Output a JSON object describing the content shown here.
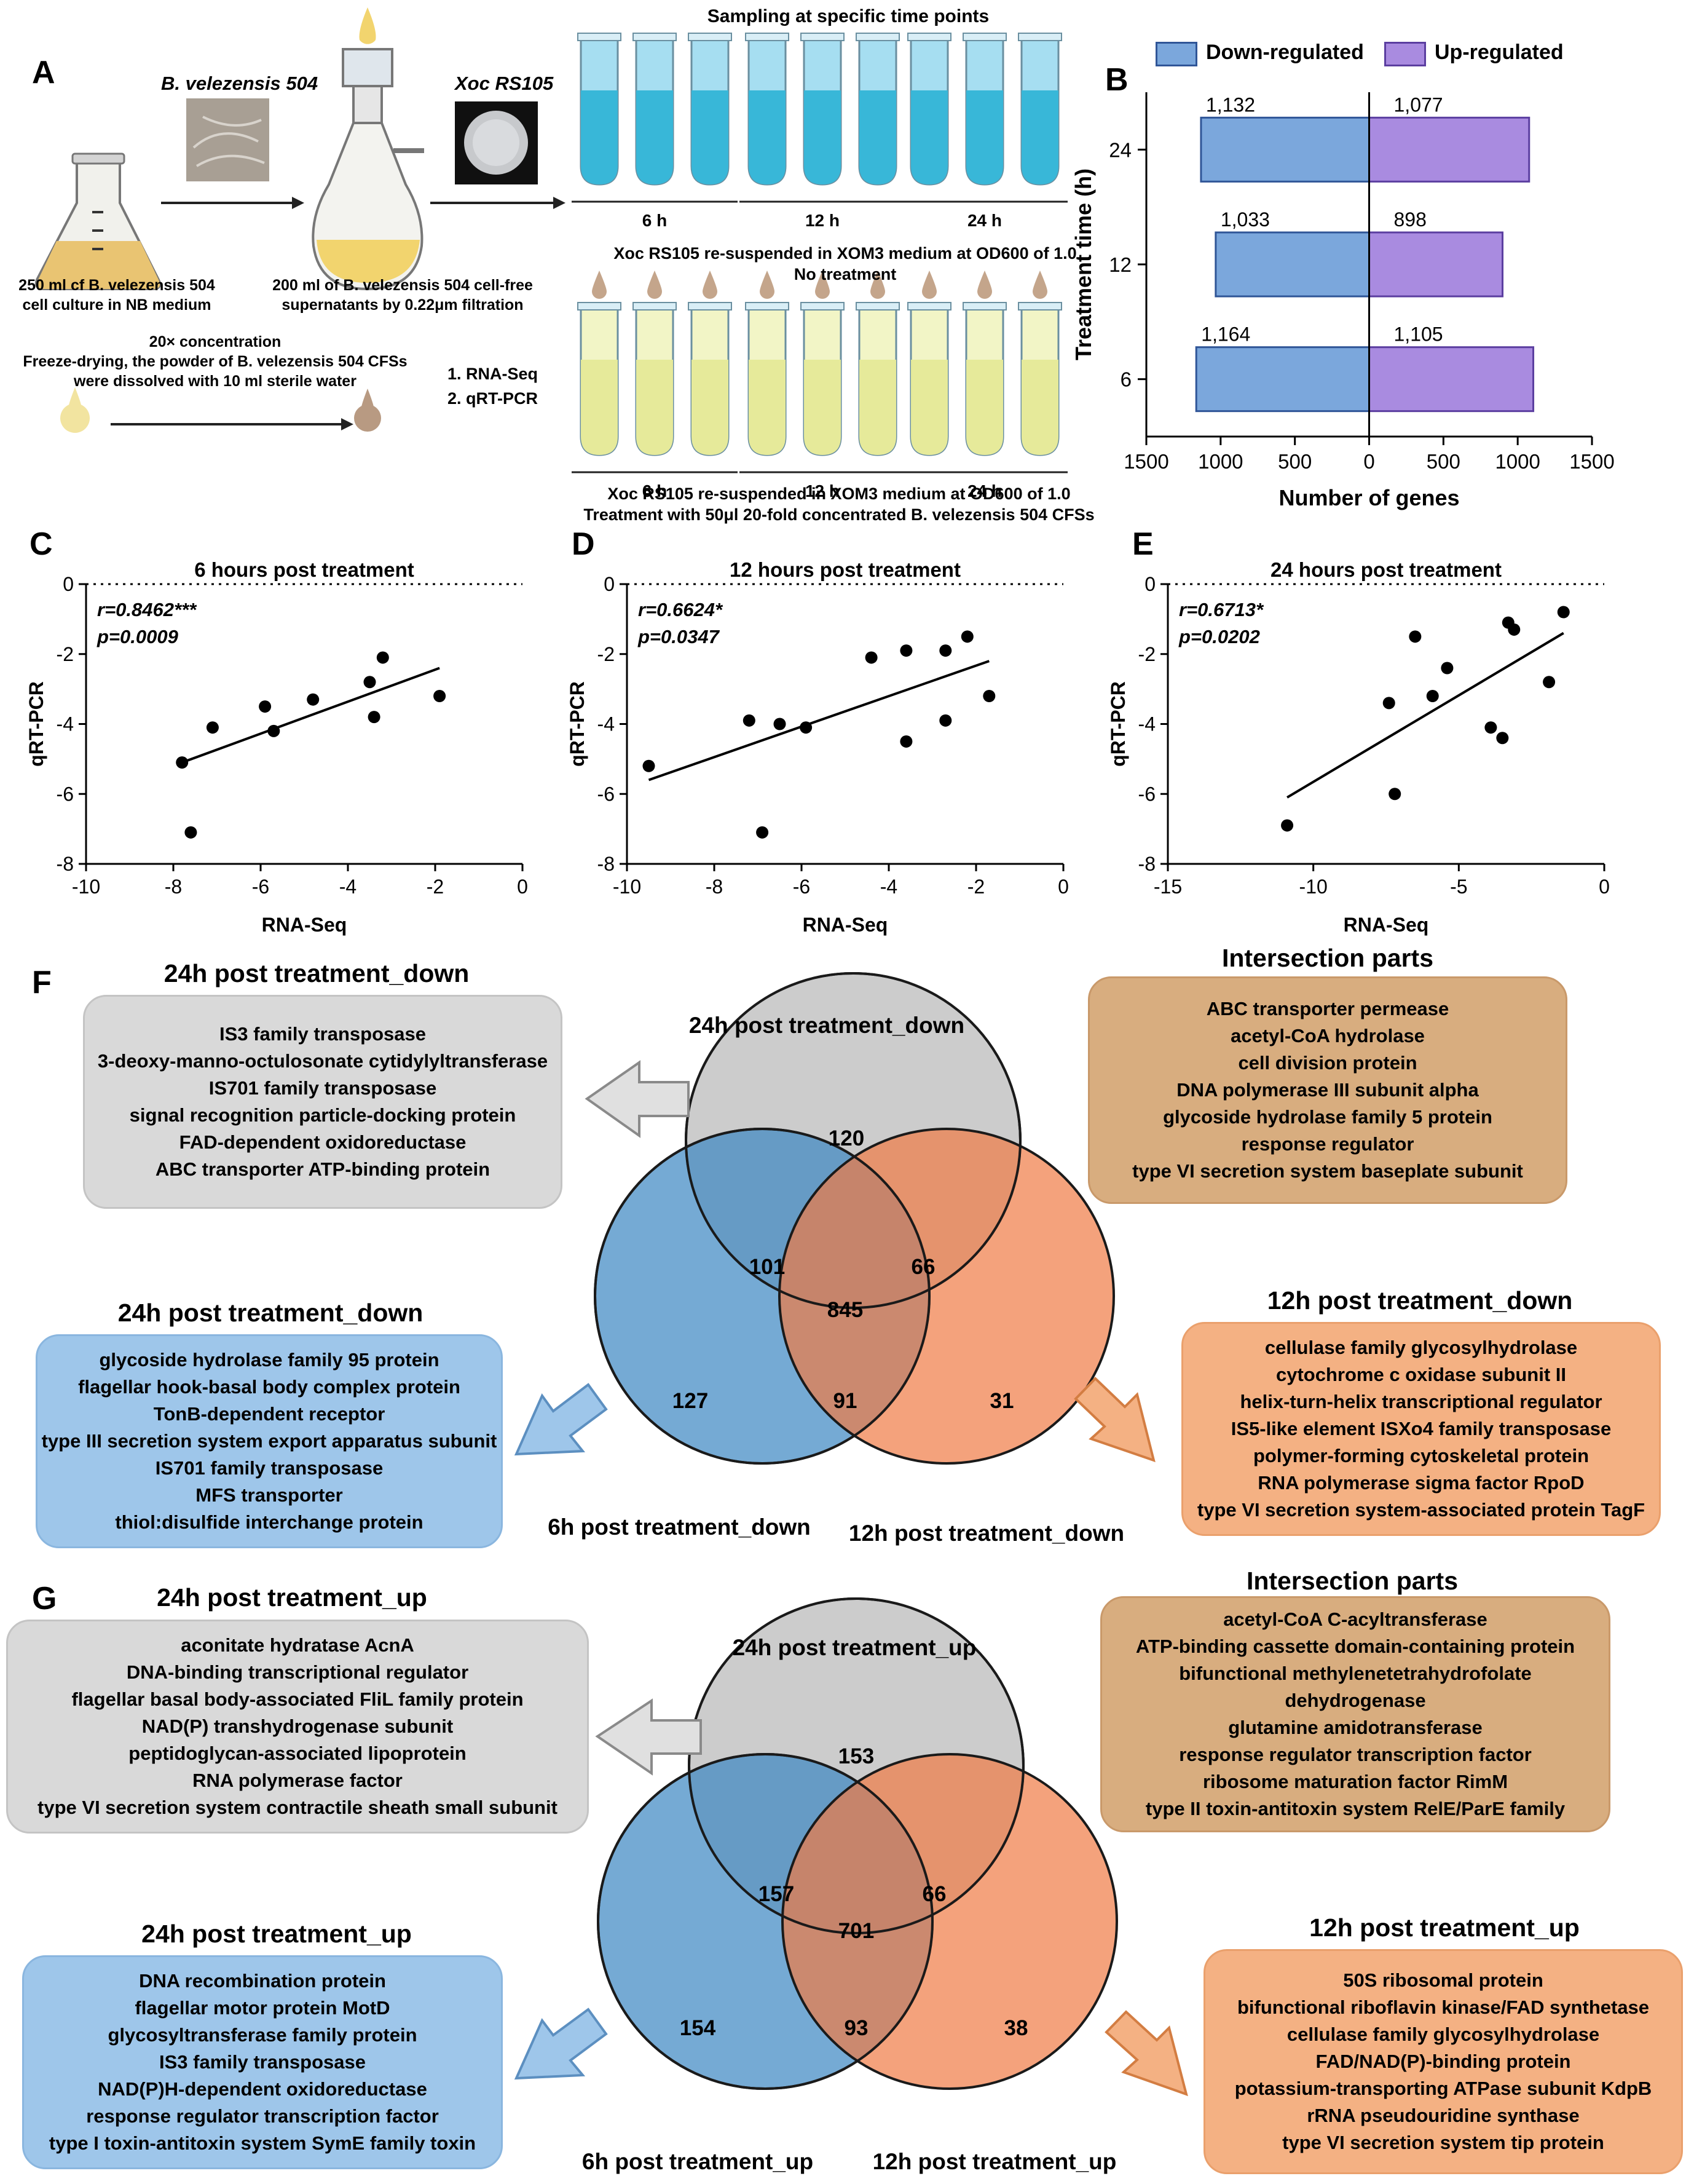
{
  "panelA": {
    "letter": "A",
    "organism_label": "B. velezensis 504",
    "xoc_label": "Xoc RS105",
    "sampling_title": "Sampling at specific time points",
    "flask_caption_1": "250 ml cf B. velezensis 504",
    "flask_caption_2": "cell culture in NB medium",
    "filter_caption_1": "200 ml of B. velezensis 504 cell-free",
    "filter_caption_2": "supernatants by 0.22μm filtration",
    "conc_1": "20× concentration",
    "conc_2": "Freeze-drying, the powder of B. velezensis 504 CFSs",
    "conc_3": "were dissolved with 10 ml sterile water",
    "methods": [
      "1.    RNA-Seq",
      "2.    qRT-PCR"
    ],
    "time_labels": [
      "6 h",
      "12 h",
      "24 h"
    ],
    "control_caption_1": "Xoc RS105 re-suspended in XOM3 medium at OD600 of 1.0",
    "control_caption_2": "No treatment",
    "treat_caption_1": "Xoc RS105 re-suspended in XOM3 medium at OD600 of 1.0",
    "treat_caption_2": "Treatment with 50μl 20-fold concentrated B. velezensis 504 CFSs"
  },
  "panelB": {
    "letter": "B",
    "legend_down": "Down-regulated",
    "legend_up": "Up-regulated",
    "down_color": "#7ba7dc",
    "up_color": "#a98be0"
  },
  "chart_data": [
    {
      "id": "B",
      "type": "bar",
      "orientation": "horizontal",
      "categories": [
        "24",
        "12",
        "6"
      ],
      "series": [
        {
          "name": "Down-regulated",
          "values": [
            1132,
            1033,
            1164
          ],
          "labels": [
            "1,132",
            "1,033",
            "1,164"
          ]
        },
        {
          "name": "Up-regulated",
          "values": [
            1077,
            898,
            1105
          ],
          "labels": [
            "1,077",
            "898",
            "1,105"
          ]
        }
      ],
      "xlabel": "Number of genes",
      "ylabel": "Treatment time (h)",
      "xlim": [
        -1500,
        1500
      ],
      "xticks": [
        -1500,
        -1000,
        -500,
        0,
        500,
        1000,
        1500
      ],
      "xtick_labels": [
        "1500",
        "1000",
        "500",
        "0",
        "500",
        "1000",
        "1500"
      ],
      "legend": "top"
    },
    {
      "id": "C",
      "type": "scatter",
      "title": "6 hours post treatment",
      "xlabel": "RNA-Seq",
      "ylabel": "qRT-PCR",
      "xlim": [
        -10,
        0
      ],
      "ylim": [
        -8,
        0
      ],
      "xticks": [
        -10,
        -8,
        -6,
        -4,
        -2,
        0
      ],
      "yticks": [
        0,
        -2,
        -4,
        -6,
        -8
      ],
      "stat_r": "r=0.8462***",
      "stat_p": "p=0.0009",
      "points": [
        [
          -7.8,
          -5.1
        ],
        [
          -7.6,
          -7.1
        ],
        [
          -7.1,
          -4.1
        ],
        [
          -5.9,
          -3.5
        ],
        [
          -5.7,
          -4.2
        ],
        [
          -4.8,
          -3.3
        ],
        [
          -3.5,
          -2.8
        ],
        [
          -3.4,
          -3.8
        ],
        [
          -3.2,
          -2.1
        ],
        [
          -1.9,
          -3.2
        ]
      ],
      "fit": [
        [
          -7.8,
          -5.1
        ],
        [
          -1.9,
          -2.4
        ]
      ]
    },
    {
      "id": "D",
      "type": "scatter",
      "title": "12 hours post treatment",
      "xlabel": "RNA-Seq",
      "ylabel": "qRT-PCR",
      "xlim": [
        -10,
        0
      ],
      "ylim": [
        -8,
        0
      ],
      "xticks": [
        -10,
        -8,
        -6,
        -4,
        -2,
        0
      ],
      "yticks": [
        0,
        -2,
        -4,
        -6,
        -8
      ],
      "stat_r": "r=0.6624*",
      "stat_p": "p=0.0347",
      "points": [
        [
          -9.5,
          -5.2
        ],
        [
          -7.2,
          -3.9
        ],
        [
          -6.9,
          -7.1
        ],
        [
          -6.5,
          -4.0
        ],
        [
          -5.9,
          -4.1
        ],
        [
          -4.4,
          -2.1
        ],
        [
          -3.6,
          -1.9
        ],
        [
          -3.6,
          -4.5
        ],
        [
          -2.7,
          -1.9
        ],
        [
          -2.7,
          -3.9
        ],
        [
          -2.2,
          -1.5
        ],
        [
          -1.7,
          -3.2
        ]
      ],
      "fit": [
        [
          -9.5,
          -5.6
        ],
        [
          -1.7,
          -2.2
        ]
      ]
    },
    {
      "id": "E",
      "type": "scatter",
      "title": "24 hours post treatment",
      "xlabel": "RNA-Seq",
      "ylabel": "qRT-PCR",
      "xlim": [
        -15,
        0
      ],
      "ylim": [
        -8,
        0
      ],
      "xticks": [
        -15,
        -10,
        -5,
        0
      ],
      "yticks": [
        0,
        -2,
        -4,
        -6,
        -8
      ],
      "stat_r": "r=0.6713*",
      "stat_p": "p=0.0202",
      "points": [
        [
          -10.9,
          -6.9
        ],
        [
          -7.2,
          -6.0
        ],
        [
          -7.4,
          -3.4
        ],
        [
          -6.5,
          -1.5
        ],
        [
          -5.9,
          -3.2
        ],
        [
          -5.4,
          -2.4
        ],
        [
          -3.9,
          -4.1
        ],
        [
          -3.5,
          -4.4
        ],
        [
          -3.3,
          -1.1
        ],
        [
          -3.1,
          -1.3
        ],
        [
          -1.9,
          -2.8
        ],
        [
          -1.4,
          -0.8
        ]
      ],
      "fit": [
        [
          -10.9,
          -6.1
        ],
        [
          -1.4,
          -1.4
        ]
      ]
    }
  ],
  "panelC": {
    "letter": "C"
  },
  "panelD": {
    "letter": "D"
  },
  "panelE": {
    "letter": "E"
  },
  "panelF": {
    "letter": "F",
    "venn": {
      "top_label": "24h post treatment_down",
      "left_label": "6h post treatment_down",
      "right_label": "12h post treatment_down",
      "top_only": "120",
      "top_left": "101",
      "top_right": "66",
      "center": "845",
      "left_only": "127",
      "left_right": "91",
      "right_only": "31"
    },
    "gray_box": {
      "title": "24h post treatment_down",
      "items": [
        "IS3 family transposase",
        "3-deoxy-manno-octulosonate cytidylyltransferase",
        "IS701 family transposase",
        "signal recognition particle-docking protein",
        "FAD-dependent oxidoreductase",
        "ABC transporter ATP-binding protein"
      ]
    },
    "tan_box": {
      "title": "Intersection parts",
      "items": [
        "ABC transporter permease",
        "acetyl-CoA hydrolase",
        "cell division protein",
        "DNA polymerase III subunit alpha",
        "glycoside hydrolase family 5 protein",
        "response regulator",
        "type VI secretion system baseplate subunit"
      ]
    },
    "blue_box": {
      "title": "24h post treatment_down",
      "items": [
        "glycoside hydrolase family 95 protein",
        "flagellar hook-basal body complex protein",
        "TonB-dependent receptor",
        "type III secretion system export apparatus subunit",
        "IS701 family transposase",
        "MFS transporter",
        "thiol:disulfide interchange protein"
      ]
    },
    "orange_box": {
      "title": "12h post treatment_down",
      "items": [
        "cellulase family glycosylhydrolase",
        "cytochrome c oxidase subunit II",
        "helix-turn-helix transcriptional regulator",
        "IS5-like element ISXo4 family transposase",
        "polymer-forming cytoskeletal protein",
        "RNA polymerase sigma factor RpoD",
        "type VI secretion system-associated protein TagF"
      ]
    }
  },
  "panelG": {
    "letter": "G",
    "venn": {
      "top_label": "24h post treatment_up",
      "left_label": "6h post treatment_up",
      "right_label": "12h post treatment_up",
      "top_only": "153",
      "top_left": "157",
      "top_right": "66",
      "center": "701",
      "left_only": "154",
      "left_right": "93",
      "right_only": "38"
    },
    "gray_box": {
      "title": "24h post treatment_up",
      "items": [
        "aconitate hydratase AcnA",
        "DNA-binding transcriptional regulator",
        "flagellar basal body-associated FliL family protein",
        "NAD(P) transhydrogenase subunit",
        "peptidoglycan-associated lipoprotein",
        "RNA polymerase factor",
        "type VI secretion system contractile sheath small subunit"
      ]
    },
    "tan_box": {
      "title": "Intersection parts",
      "items": [
        "acetyl-CoA C-acyltransferase",
        "ATP-binding cassette domain-containing protein",
        "bifunctional methylenetetrahydrofolate",
        "dehydrogenase",
        "glutamine amidotransferase",
        "response regulator transcription factor",
        "ribosome maturation factor RimM",
        "type II toxin-antitoxin system RelE/ParE family"
      ]
    },
    "blue_box": {
      "title": "24h post treatment_up",
      "items": [
        "DNA recombination protein",
        "flagellar motor protein MotD",
        "glycosyltransferase family protein",
        "IS3 family transposase",
        "NAD(P)H-dependent oxidoreductase",
        "response regulator transcription factor",
        "type I toxin-antitoxin system SymE family toxin"
      ]
    },
    "orange_box": {
      "title": "12h post treatment_up",
      "items": [
        "50S ribosomal protein",
        "bifunctional riboflavin kinase/FAD synthetase",
        "cellulase family glycosylhydrolase",
        "FAD/NAD(P)-binding protein",
        "potassium-transporting ATPase subunit KdpB",
        "rRNA pseudouridine synthase",
        "type VI secretion system tip protein"
      ]
    }
  }
}
